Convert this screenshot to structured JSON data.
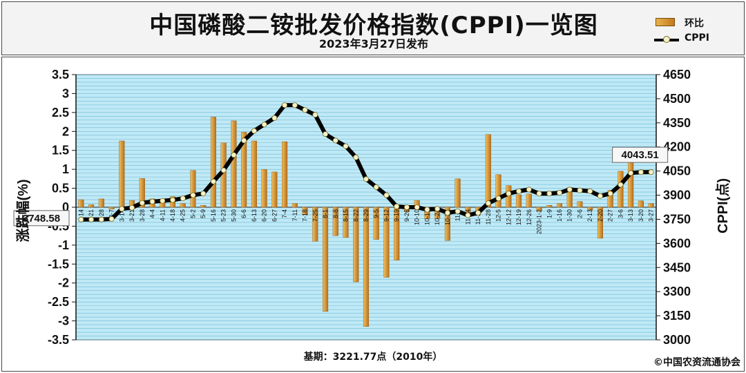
{
  "header": {
    "title": "中国磷酸二铵批发价格指数(CPPI)一览图",
    "subtitle": "2023年3月27日发布"
  },
  "legend": {
    "bar_label": "环比",
    "line_label": "CPPI"
  },
  "footer": {
    "base_text": "基期：3221.77点（2010年）",
    "copyright": "©中国农资流通协会"
  },
  "colors": {
    "plot_bg": "#bfe9f5",
    "grid": "#6fb9d8",
    "bar_light": "#f0c060",
    "bar_dark": "#b8701c",
    "line": "#000000",
    "marker_fill": "#f6f1c8"
  },
  "chart_data": {
    "type": "bar+line",
    "categories": [
      "2-14",
      "2-21",
      "2-28",
      "3-7",
      "3-14",
      "3-21",
      "3-28",
      "4-4",
      "4-11",
      "4-18",
      "4-25",
      "5-2",
      "5-9",
      "5-16",
      "5-23",
      "5-30",
      "6-6",
      "6-13",
      "6-20",
      "6-27",
      "7-4",
      "7-11",
      "7-18",
      "7-25",
      "8-1",
      "8-8",
      "8-15",
      "8-22",
      "8-29",
      "9-5",
      "9-12",
      "9-19",
      "9-26",
      "10-10",
      "10-17",
      "10-24",
      "10-31",
      "11-7",
      "11-14",
      "11-21",
      "11-28",
      "12-5",
      "12-12",
      "12-19",
      "12-26",
      "2023-1-2",
      "1-9",
      "1-16",
      "1-30",
      "2-6",
      "2-13",
      "2-20",
      "2-27",
      "3-6",
      "3-13",
      "3-20",
      "3-27"
    ],
    "series": [
      {
        "name": "环比",
        "type": "bar",
        "axis": "left",
        "values": [
          0.2,
          0.07,
          0.22,
          -0.05,
          1.75,
          0.18,
          0.76,
          0.22,
          0.12,
          0.28,
          0.1,
          0.97,
          0.05,
          2.38,
          1.7,
          2.28,
          1.98,
          1.75,
          1.0,
          0.93,
          1.73,
          0.1,
          -0.2,
          -0.9,
          -2.75,
          -0.75,
          -0.8,
          -1.97,
          -3.15,
          -0.85,
          -1.85,
          -1.4,
          -0.12,
          0.18,
          -0.3,
          -0.3,
          -0.88,
          0.75,
          -0.25,
          -0.2,
          1.92,
          0.86,
          0.57,
          0.33,
          0.35,
          -0.1,
          0.05,
          0.1,
          0.52,
          0.15,
          -0.08,
          -0.82,
          0.45,
          0.95,
          1.48,
          0.17,
          0.1
        ]
      },
      {
        "name": "CPPI",
        "type": "line",
        "axis": "right",
        "values": [
          3748.58,
          3748.58,
          3748.58,
          3752,
          3815,
          3822,
          3852,
          3860,
          3865,
          3870,
          3880,
          3900,
          3910,
          3985,
          4055,
          4150,
          4240,
          4300,
          4340,
          4380,
          4460,
          4460,
          4430,
          4400,
          4280,
          4240,
          4205,
          4135,
          4000,
          3950,
          3900,
          3830,
          3825,
          3825,
          3810,
          3815,
          3790,
          3800,
          3775,
          3790,
          3850,
          3880,
          3910,
          3925,
          3935,
          3910,
          3910,
          3915,
          3935,
          3930,
          3925,
          3895,
          3910,
          3965,
          4038,
          4043,
          4043.51
        ]
      }
    ],
    "yleft": {
      "label": "涨跌幅(%)",
      "ticks": [
        "3.5",
        "3",
        "2.5",
        "2",
        "1.5",
        "1",
        "0.5",
        "0",
        "-0.5",
        "-1",
        "-1.5",
        "-2",
        "-2.5",
        "-3",
        "-3.5"
      ],
      "ylim": [
        -3.5,
        3.5
      ]
    },
    "yright": {
      "label": "CPPI(点)",
      "ticks": [
        "4650",
        "4500",
        "4350",
        "4200",
        "4050",
        "3900",
        "3750",
        "3600",
        "3450",
        "3300",
        "3150",
        "3000"
      ],
      "ylim": [
        3000,
        4650
      ]
    },
    "annotations": [
      {
        "text": "3748.58",
        "at": "start"
      },
      {
        "text": "4043.51",
        "at": "end"
      }
    ]
  }
}
